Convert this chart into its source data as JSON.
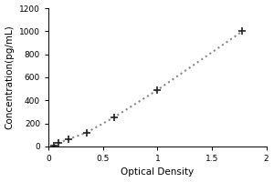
{
  "x_values": [
    0.05,
    0.09,
    0.18,
    0.35,
    0.6,
    1.0,
    1.78
  ],
  "y_values": [
    5,
    30,
    62,
    120,
    252,
    490,
    1000
  ],
  "xlabel": "Optical Density",
  "ylabel": "Concentration(pg/mL)",
  "xlim": [
    0,
    2
  ],
  "ylim": [
    0,
    1200
  ],
  "xticks": [
    0,
    0.5,
    1.0,
    1.5,
    2.0
  ],
  "xtick_labels": [
    "0",
    "0.5",
    "1",
    "1.5",
    "2"
  ],
  "yticks": [
    0,
    200,
    400,
    600,
    800,
    1000,
    1200
  ],
  "marker": "+",
  "marker_color": "#222222",
  "line_color": "#888888",
  "line_style": "dotted",
  "marker_size": 6,
  "marker_linewidth": 1.2,
  "line_width": 1.5,
  "background_color": "#ffffff",
  "label_fontsize": 7.5,
  "tick_fontsize": 6.5
}
